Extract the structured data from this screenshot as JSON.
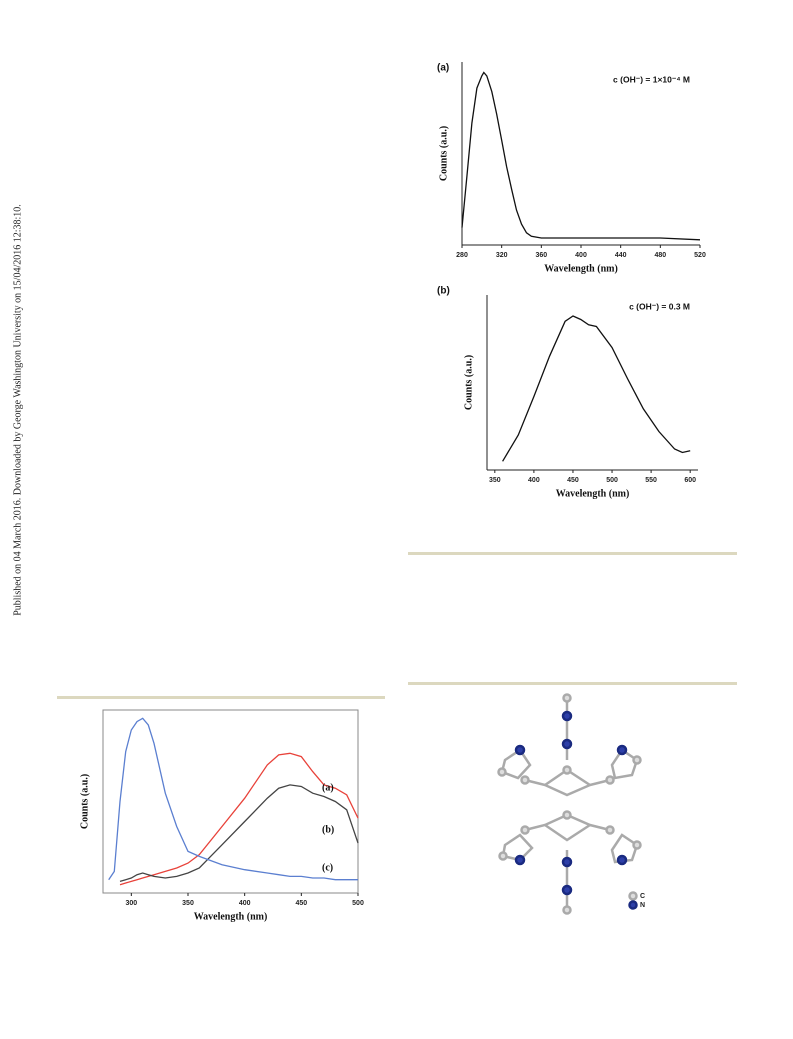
{
  "sidebar": "Published on 04 March 2016. Downloaded by George Washington University on 15/04/2016 12:38:10.",
  "structure_legend": [
    "C",
    "N"
  ],
  "chart_data": [
    {
      "type": "line",
      "panel_label": "(a)",
      "annotation": "c (OH⁻) = 1×10⁻⁴ M",
      "x_label": "Wavelength (nm)",
      "y_label": "Counts (a.u.)",
      "x": [
        280,
        285,
        290,
        295,
        300,
        302,
        305,
        310,
        315,
        320,
        325,
        330,
        335,
        340,
        345,
        350,
        360,
        400,
        440,
        480,
        520
      ],
      "values": [
        10,
        40,
        70,
        90,
        97,
        99,
        97,
        88,
        75,
        60,
        45,
        32,
        20,
        12,
        7,
        5,
        4,
        4,
        4,
        4,
        3
      ],
      "color": "#111111",
      "xlim": [
        280,
        520
      ],
      "xticks": [
        280,
        320,
        360,
        400,
        440,
        480,
        520
      ],
      "ylim": [
        0,
        105
      ]
    },
    {
      "type": "line",
      "panel_label": "(b)",
      "annotation": "c (OH⁻) = 0.3 M",
      "x_label": "Wavelength (nm)",
      "y_label": "Counts (a.u.)",
      "x": [
        360,
        380,
        400,
        420,
        440,
        450,
        460,
        470,
        480,
        500,
        520,
        540,
        560,
        580,
        590,
        600
      ],
      "values": [
        5,
        20,
        42,
        65,
        85,
        88,
        86,
        83,
        82,
        70,
        52,
        35,
        22,
        12,
        10,
        11
      ],
      "color": "#111111",
      "xlim": [
        340,
        610
      ],
      "xticks": [
        350,
        400,
        450,
        500,
        550,
        600
      ],
      "ylim": [
        0,
        100
      ]
    },
    {
      "type": "line",
      "x_label": "Wavelength (nm)",
      "y_label": "Counts (a.u.)",
      "x": [
        280,
        285,
        290,
        295,
        300,
        305,
        310,
        315,
        320,
        330,
        340,
        350,
        360,
        380,
        400,
        420,
        430,
        440,
        450,
        460,
        470,
        480,
        490,
        500
      ],
      "series": [
        {
          "name": "(a)",
          "color": "#e8423a",
          "values": [
            null,
            null,
            0,
            1,
            2,
            3,
            4,
            5,
            6,
            8,
            10,
            13,
            18,
            35,
            52,
            72,
            78,
            79,
            77,
            68,
            60,
            58,
            54,
            40
          ]
        },
        {
          "name": "(b)",
          "color": "#444444",
          "values": [
            null,
            null,
            2,
            3,
            4,
            6,
            7,
            6,
            5,
            4,
            5,
            7,
            10,
            24,
            38,
            52,
            58,
            60,
            59,
            55,
            53,
            50,
            45,
            25
          ]
        },
        {
          "name": "(c)",
          "color": "#5b7fd0",
          "values": [
            3,
            8,
            50,
            80,
            93,
            98,
            100,
            96,
            85,
            55,
            35,
            20,
            17,
            12,
            9,
            7,
            6,
            5,
            5,
            4,
            4,
            3,
            3,
            3
          ]
        }
      ],
      "xlim": [
        275,
        500
      ],
      "xticks": [
        300,
        350,
        400,
        450,
        500
      ],
      "ylim": [
        -5,
        105
      ]
    }
  ]
}
